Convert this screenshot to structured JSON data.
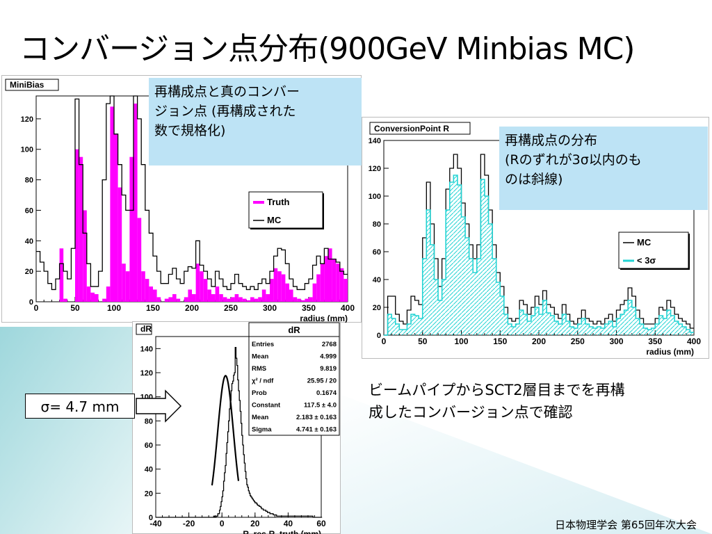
{
  "title": "コンバージョン点分布(900GeV Minbias MC)",
  "note_left": {
    "lines": [
      "再構成点と真のコンバー",
      "ジョン点 (再構成された",
      "数で規格化)"
    ]
  },
  "note_right": {
    "lines": [
      "再構成点の分布",
      "(Rのずれが3σ以内のも",
      "のは斜線)"
    ]
  },
  "description": {
    "lines": [
      "ビームパイプからSCT2層目までを再構",
      "成したコンバージョン点で確認"
    ]
  },
  "sigma_label": "σ= 4.7 mm",
  "footer": "日本物理学会 第65回年次大会",
  "colors": {
    "truth": "#ff00ff",
    "mc": "#000000",
    "within3sigma": "#22d3d3",
    "note_bg": "#bde3f5"
  },
  "icons": {
    "arrow": "right-arrow-icon"
  },
  "chart_data": [
    {
      "type": "bar",
      "title": "MiniBias",
      "xlabel": "radius (mm)",
      "ylabel": "",
      "xlim": [
        0,
        400
      ],
      "ylim": [
        0,
        135
      ],
      "bin_width": 5,
      "x_ticks": [
        0,
        50,
        100,
        150,
        200,
        250,
        300,
        350,
        400
      ],
      "y_ticks": [
        0,
        20,
        40,
        60,
        80,
        100,
        120
      ],
      "legend": {
        "position": "right",
        "entries": [
          "Truth",
          "MC"
        ]
      },
      "series": [
        {
          "name": "Truth",
          "style": "filled",
          "values": [
            0,
            0,
            0,
            0,
            0,
            0,
            35,
            2,
            0,
            0,
            100,
            95,
            60,
            10,
            6,
            5,
            0,
            2,
            10,
            128,
            110,
            75,
            25,
            20,
            95,
            130,
            55,
            20,
            15,
            10,
            8,
            3,
            0,
            2,
            3,
            5,
            2,
            0,
            3,
            8,
            5,
            25,
            20,
            15,
            8,
            5,
            10,
            5,
            3,
            2,
            3,
            5,
            3,
            2,
            1,
            3,
            2,
            3,
            8,
            5,
            15,
            22,
            20,
            18,
            12,
            8,
            3,
            2,
            1,
            2,
            3,
            12,
            18,
            25,
            30,
            35,
            28,
            25,
            22,
            15
          ]
        },
        {
          "name": "MC",
          "style": "outline",
          "values": [
            33,
            26,
            20,
            12,
            8,
            15,
            25,
            20,
            15,
            35,
            133,
            90,
            45,
            25,
            10,
            10,
            20,
            80,
            130,
            138,
            110,
            90,
            70,
            60,
            60,
            138,
            120,
            90,
            60,
            45,
            30,
            20,
            12,
            12,
            18,
            22,
            15,
            12,
            20,
            23,
            22,
            40,
            24,
            20,
            15,
            10,
            20,
            15,
            10,
            8,
            12,
            18,
            12,
            10,
            8,
            10,
            8,
            12,
            15,
            12,
            20,
            30,
            35,
            34,
            25,
            15,
            10,
            8,
            8,
            12,
            15,
            24,
            30,
            25,
            35,
            28,
            28,
            26,
            20,
            18
          ]
        }
      ]
    },
    {
      "type": "bar",
      "title": "ConversionPoint R",
      "xlabel": "radius (mm)",
      "ylabel": "",
      "xlim": [
        0,
        400
      ],
      "ylim": [
        0,
        140
      ],
      "bin_width": 5,
      "x_ticks": [
        0,
        50,
        100,
        150,
        200,
        250,
        300,
        350,
        400
      ],
      "y_ticks": [
        0,
        20,
        40,
        60,
        80,
        100,
        120,
        140
      ],
      "legend": {
        "position": "right",
        "entries": [
          "MC",
          "< 3σ"
        ]
      },
      "series": [
        {
          "name": "MC",
          "style": "outline",
          "values": [
            0,
            28,
            28,
            15,
            10,
            8,
            18,
            28,
            25,
            22,
            70,
            110,
            80,
            55,
            35,
            55,
            105,
            120,
            130,
            120,
            95,
            80,
            65,
            55,
            65,
            130,
            115,
            90,
            65,
            45,
            35,
            20,
            12,
            10,
            12,
            25,
            22,
            15,
            20,
            28,
            22,
            32,
            22,
            20,
            15,
            12,
            22,
            15,
            10,
            8,
            12,
            18,
            12,
            10,
            8,
            10,
            8,
            12,
            15,
            10,
            18,
            22,
            25,
            34,
            28,
            18,
            12,
            8,
            8,
            8,
            12,
            20,
            18,
            25,
            20,
            15,
            12,
            10,
            8,
            5
          ]
        },
        {
          "name": "< 3σ",
          "style": "hatched",
          "values": [
            0,
            15,
            12,
            8,
            4,
            4,
            8,
            15,
            14,
            12,
            55,
            90,
            65,
            40,
            25,
            40,
            90,
            110,
            115,
            108,
            85,
            70,
            55,
            45,
            55,
            112,
            100,
            80,
            55,
            38,
            28,
            15,
            8,
            6,
            8,
            18,
            15,
            10,
            14,
            20,
            15,
            25,
            16,
            14,
            10,
            8,
            15,
            10,
            6,
            5,
            8,
            12,
            8,
            6,
            5,
            6,
            5,
            8,
            10,
            6,
            12,
            15,
            18,
            25,
            20,
            12,
            8,
            5,
            4,
            5,
            8,
            14,
            12,
            18,
            14,
            10,
            8,
            6,
            4,
            2
          ]
        }
      ]
    },
    {
      "type": "line",
      "title": "dR",
      "xlabel": "R_rec-R_truth (mm)",
      "ylabel": "",
      "xlim": [
        -40,
        60
      ],
      "ylim": [
        0,
        150
      ],
      "bin_width": 0.5,
      "x_ticks": [
        -40,
        -20,
        0,
        20,
        40,
        60
      ],
      "y_ticks": [
        0,
        20,
        40,
        60,
        80,
        100,
        120,
        140
      ],
      "stats": [
        {
          "label": "Entries",
          "value": "2768"
        },
        {
          "label": "Mean",
          "value": "4.999"
        },
        {
          "label": "RMS",
          "value": "9.819"
        },
        {
          "label": "χ² / ndf",
          "value": "25.95 / 20"
        },
        {
          "label": "Prob",
          "value": "0.1674"
        },
        {
          "label": "Constant",
          "value": "117.5 ± 4.0"
        },
        {
          "label": "Mean",
          "value": "2.183 ± 0.163"
        },
        {
          "label": "Sigma",
          "value": "4.741 ± 0.163"
        }
      ],
      "fit": {
        "function": "gaus",
        "constant": 117.5,
        "mean": 2.183,
        "sigma": 4.741,
        "range": [
          -6,
          10
        ]
      },
      "series": [
        {
          "name": "dR",
          "style": "outline",
          "values": [
            0,
            0,
            0,
            0,
            0,
            0,
            0,
            0,
            0,
            0,
            0,
            0,
            0,
            0,
            0,
            0,
            0,
            0,
            0,
            0,
            0,
            0,
            0,
            0,
            0,
            0,
            0,
            0,
            0,
            0,
            0,
            0,
            0,
            0,
            0,
            0,
            0,
            0,
            0,
            0,
            0,
            0,
            0,
            0,
            0,
            0,
            0,
            0,
            0,
            0,
            0,
            0,
            0,
            0,
            0,
            0,
            0,
            0,
            0,
            0,
            0,
            0,
            0,
            0,
            0,
            0,
            0,
            0,
            0,
            0,
            1,
            0,
            0,
            1,
            1,
            3,
            3,
            6,
            9,
            13,
            17,
            22,
            30,
            37,
            43,
            53,
            62,
            71,
            80,
            90,
            97,
            105,
            111,
            113,
            118,
            120,
            141,
            132,
            126,
            114,
            105,
            97,
            88,
            78,
            68,
            60,
            52,
            45,
            38,
            32,
            27,
            25,
            22,
            20,
            18,
            17,
            16,
            15,
            14,
            13,
            12,
            12,
            11,
            10,
            10,
            9,
            9,
            8,
            7,
            7,
            6,
            6,
            6,
            5,
            5,
            4,
            4,
            4,
            3,
            3,
            3,
            3,
            2,
            2,
            2,
            2,
            1,
            1,
            1,
            1,
            1,
            1,
            1,
            1,
            1,
            1,
            1,
            1,
            1,
            1,
            1,
            1,
            1,
            1,
            1,
            1,
            1,
            1,
            1,
            1,
            1,
            1,
            1,
            1,
            1,
            1,
            1,
            1,
            1,
            1,
            1,
            1,
            1,
            1,
            1,
            1,
            1,
            1,
            1,
            1,
            0,
            0,
            0,
            0,
            0,
            0,
            0,
            0,
            0,
            0,
            0
          ]
        }
      ]
    }
  ]
}
